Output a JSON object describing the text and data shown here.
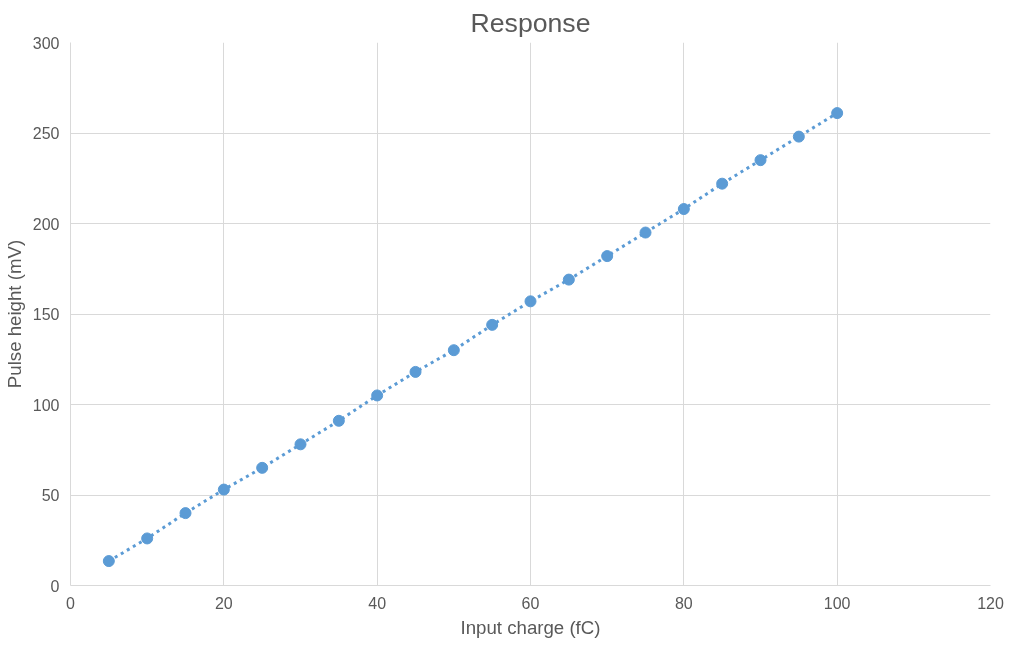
{
  "chart_data": {
    "type": "line",
    "title": "Response",
    "xlabel": "Input charge (fC)",
    "ylabel": "Pulse height (mV)",
    "x": [
      5,
      10,
      15,
      20,
      25,
      30,
      35,
      40,
      45,
      50,
      55,
      60,
      65,
      70,
      75,
      80,
      85,
      90,
      95,
      100
    ],
    "series": [
      {
        "color": "#5b9bd5",
        "values": [
          13.5,
          26,
          40,
          53,
          65,
          78,
          91,
          105,
          118,
          130,
          144,
          157,
          169,
          182,
          195,
          208,
          222,
          235,
          248,
          261
        ]
      }
    ],
    "xlim": [
      0,
      120
    ],
    "xticks": [
      0,
      20,
      40,
      60,
      80,
      100,
      120
    ],
    "ylim": [
      0,
      300
    ],
    "yticks": [
      0,
      50,
      100,
      150,
      200,
      250,
      300
    ],
    "grid": true,
    "marker": "circle",
    "line_style": "dotted"
  }
}
